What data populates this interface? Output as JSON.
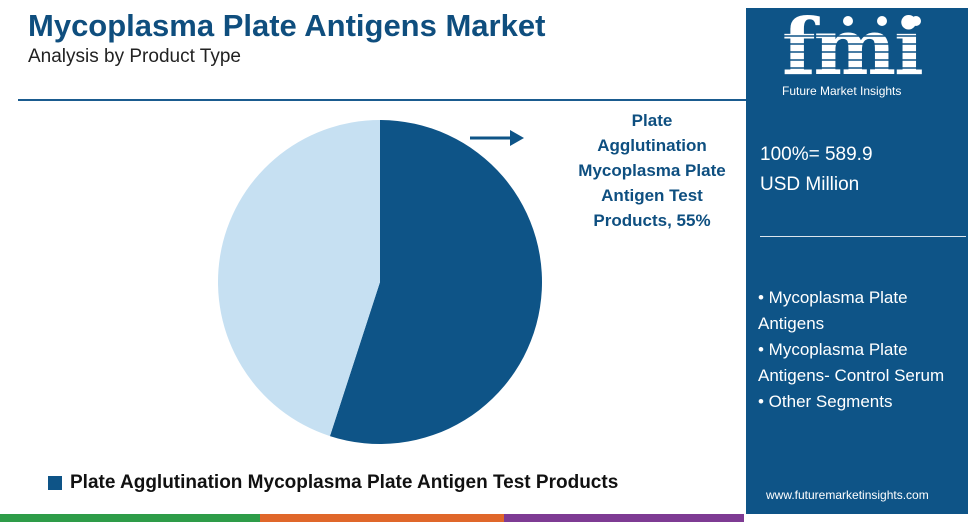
{
  "header": {
    "title": "Mycoplasma Plate Antigens Market",
    "subtitle": "Analysis by Product Type"
  },
  "brand": {
    "logo_text": "fmi",
    "name": "Future Market Insights",
    "url": "www.futuremarketinsights.com"
  },
  "summary": {
    "total_line1": "100%= 589.9",
    "total_line2": "USD Million"
  },
  "segments": [
    "• Mycoplasma Plate Antigens",
    "• Mycoplasma Plate Antigens- Control Serum",
    "• Other Segments"
  ],
  "annotation": {
    "lines": [
      "Plate",
      "Agglutination",
      "Mycoplasma Plate",
      "Antigen Test",
      "Products, 55%"
    ]
  },
  "colors": {
    "primary": "#0e5487",
    "secondary": "#c6e0f2",
    "bottom_bar": [
      "#2e9c48",
      "#e0672a",
      "#7e3b93"
    ]
  },
  "chart_data": {
    "type": "pie",
    "title": "",
    "slices": [
      {
        "label": "Plate Agglutination Mycoplasma Plate Antigen Test Products",
        "value": 55,
        "color": "#0e5487"
      },
      {
        "label": "",
        "value": 45,
        "color": "#c6e0f2"
      }
    ],
    "legend": [
      {
        "label": "Plate Agglutination Mycoplasma Plate Antigen Test Products",
        "color": "#0e5487"
      }
    ],
    "legend_position": "bottom-left"
  }
}
